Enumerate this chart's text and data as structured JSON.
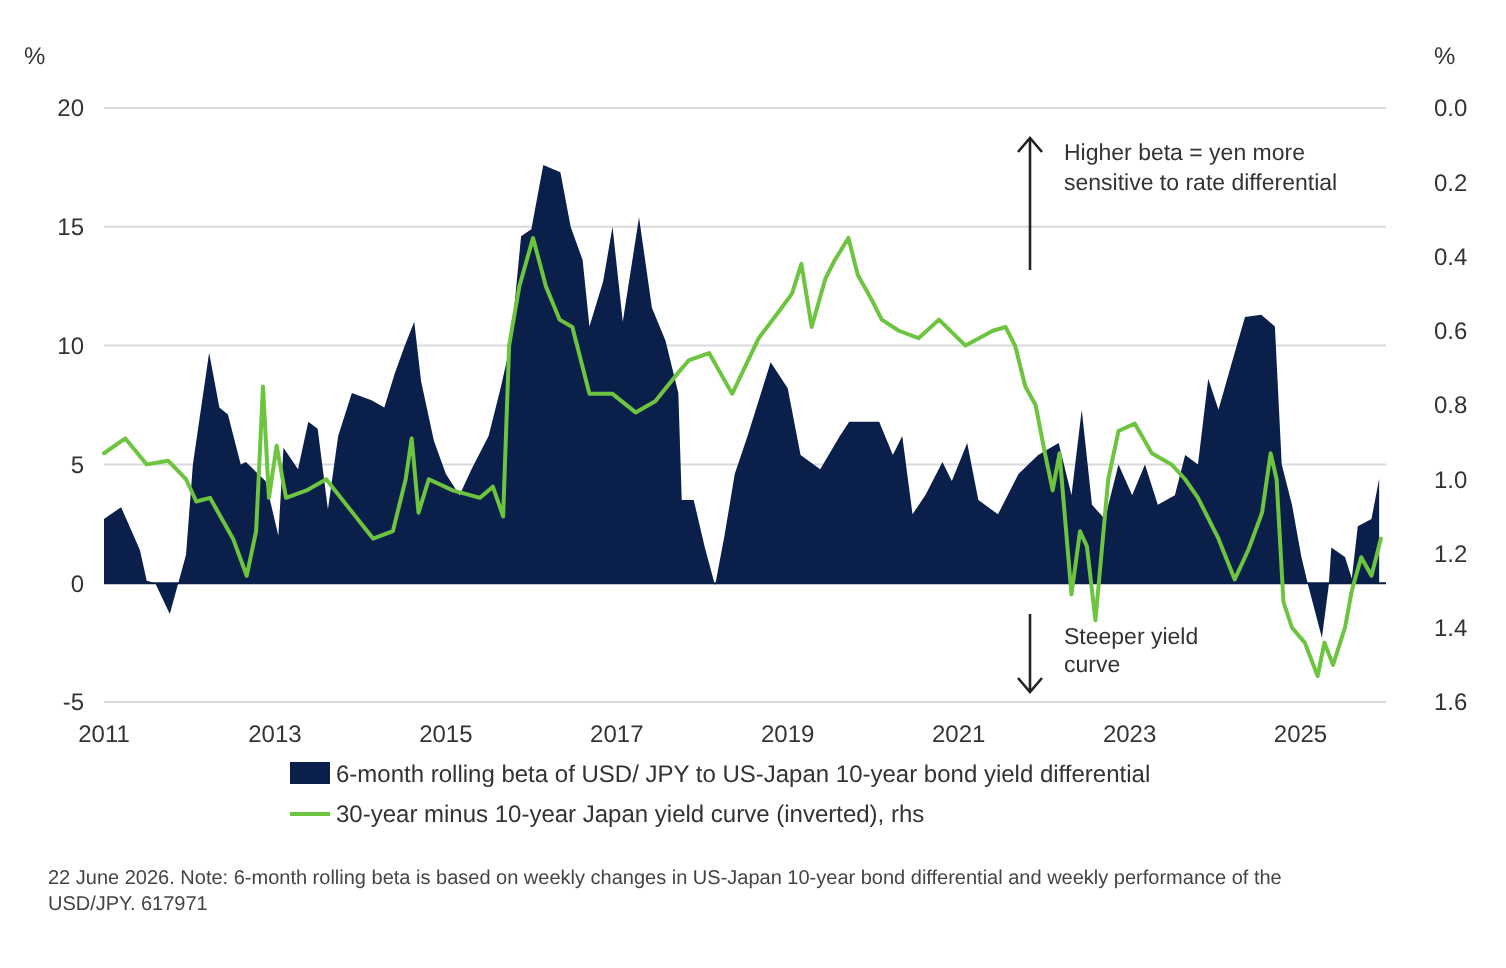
{
  "chart_data": {
    "type": "area",
    "ylabel": "%",
    "y2label": "%",
    "xlim": [
      2011,
      2026
    ],
    "xticks": [
      2011,
      2013,
      2015,
      2017,
      2019,
      2021,
      2023,
      2025
    ],
    "ylim": [
      -5,
      20
    ],
    "yticks": [
      -5,
      0,
      5,
      10,
      15,
      20
    ],
    "y2lim": [
      1.6,
      0
    ],
    "y2ticks": [
      {
        "value": 0,
        "label": "0.0"
      },
      0.2,
      0.4,
      0.6,
      0.8,
      {
        "value": 1,
        "label": "1.0"
      },
      1.2,
      1.4,
      1.6
    ],
    "grid": "y",
    "legend": "bottom",
    "series": [
      {
        "name": "6-month rolling beta of USD/ JPY to US-Japan 10-year bond yield differential",
        "color": "#0b1f4b",
        "x": [
          2011,
          2011.2,
          2011.42,
          2011.5,
          2011.6,
          2011.77,
          2011.96,
          2012.04,
          2012.23,
          2012.35,
          2012.45,
          2012.6,
          2012.66,
          2012.89,
          2013.04,
          2013.1,
          2013.27,
          2013.39,
          2013.5,
          2013.62,
          2013.74,
          2013.9,
          2014.13,
          2014.28,
          2014.4,
          2014.52,
          2014.63,
          2014.71,
          2014.86,
          2015,
          2015.16,
          2015.3,
          2015.5,
          2015.64,
          2015.76,
          2015.88,
          2016,
          2016.14,
          2016.34,
          2016.46,
          2016.6,
          2016.68,
          2016.84,
          2016.95,
          2017.07,
          2017.26,
          2017.41,
          2017.57,
          2017.72,
          2017.76,
          2017.9,
          2018.03,
          2018.15,
          2018.26,
          2018.38,
          2018.53,
          2018.8,
          2019,
          2019.15,
          2019.38,
          2019.61,
          2019.72,
          2020.07,
          2020.23,
          2020.34,
          2020.46,
          2020.61,
          2020.81,
          2020.92,
          2021.1,
          2021.23,
          2021.46,
          2021.7,
          2021.93,
          2022.17,
          2022.32,
          2022.44,
          2022.56,
          2022.71,
          2022.87,
          2023.03,
          2023.18,
          2023.33,
          2023.53,
          2023.65,
          2023.8,
          2023.92,
          2024.04,
          2024.19,
          2024.35,
          2024.54,
          2024.7,
          2024.78,
          2024.9,
          2025.01,
          2025.09,
          2025.25,
          2025.33,
          2025.36,
          2025.52,
          2025.6,
          2025.67,
          2025.83,
          2025.92
        ],
        "values": [
          2.7,
          3.2,
          1.4,
          0.1,
          0,
          -1.3,
          1.2,
          5,
          9.7,
          7.4,
          7.1,
          5,
          5.1,
          4.3,
          2,
          5.7,
          4.8,
          6.8,
          6.5,
          3.1,
          6.2,
          8,
          7.7,
          7.4,
          8.8,
          10,
          11,
          8.5,
          6,
          4.6,
          3.7,
          4.8,
          6.2,
          8.2,
          10.1,
          14.6,
          14.9,
          17.6,
          17.3,
          15,
          13.6,
          10.8,
          12.7,
          15,
          11,
          15.4,
          11.6,
          10.2,
          8,
          3.5,
          3.5,
          1.5,
          -0.1,
          2,
          4.6,
          6.2,
          9.3,
          8.2,
          5.4,
          4.8,
          6.2,
          6.8,
          6.8,
          5.4,
          6.2,
          2.9,
          3.7,
          5.1,
          4.3,
          5.9,
          3.5,
          2.9,
          4.6,
          5.4,
          5.9,
          3.7,
          7.3,
          3.3,
          2.7,
          5,
          3.7,
          5,
          3.3,
          3.7,
          5.4,
          5,
          8.6,
          7.3,
          9.2,
          11.2,
          11.3,
          10.8,
          5,
          3.3,
          1.1,
          -0.1,
          -2.3,
          -0.1,
          1.5,
          1.1,
          0.2,
          2.4,
          2.7,
          4.4
        ]
      },
      {
        "name": "30-year minus 10-year Japan yield curve (inverted), rhs",
        "type": "line",
        "axis": "y2",
        "color": "#6cc43f",
        "x": [
          2011,
          2011.25,
          2011.5,
          2011.75,
          2011.96,
          2012.08,
          2012.24,
          2012.51,
          2012.67,
          2012.78,
          2012.86,
          2012.93,
          2013.02,
          2013.13,
          2013.37,
          2013.6,
          2013.84,
          2014.15,
          2014.38,
          2014.53,
          2014.6,
          2014.68,
          2014.8,
          2015.08,
          2015.4,
          2015.55,
          2015.67,
          2015.74,
          2015.86,
          2016.02,
          2016.17,
          2016.33,
          2016.48,
          2016.68,
          2016.95,
          2017.22,
          2017.45,
          2017.73,
          2017.84,
          2018.08,
          2018.35,
          2018.66,
          2018.89,
          2019.05,
          2019.16,
          2019.28,
          2019.44,
          2019.55,
          2019.71,
          2019.82,
          2019.99,
          2020.1,
          2020.3,
          2020.53,
          2020.77,
          2021.08,
          2021.4,
          2021.55,
          2021.66,
          2021.78,
          2021.9,
          2022.01,
          2022.1,
          2022.18,
          2022.32,
          2022.42,
          2022.5,
          2022.6,
          2022.75,
          2022.87,
          2023.06,
          2023.26,
          2023.49,
          2023.65,
          2023.8,
          2024.04,
          2024.23,
          2024.39,
          2024.55,
          2024.65,
          2024.72,
          2024.8,
          2024.9,
          2025.05,
          2025.2,
          2025.28,
          2025.38,
          2025.52,
          2025.6,
          2025.71,
          2025.83,
          2025.94
        ],
        "values": [
          0.93,
          0.89,
          0.96,
          0.95,
          1.0,
          1.06,
          1.05,
          1.16,
          1.26,
          1.14,
          0.75,
          1.05,
          0.91,
          1.05,
          1.03,
          1.0,
          1.07,
          1.16,
          1.14,
          1.0,
          0.89,
          1.09,
          1.0,
          1.03,
          1.05,
          1.02,
          1.1,
          0.64,
          0.48,
          0.35,
          0.48,
          0.57,
          0.59,
          0.77,
          0.77,
          0.82,
          0.79,
          0.71,
          0.68,
          0.66,
          0.77,
          0.62,
          0.55,
          0.5,
          0.42,
          0.59,
          0.46,
          0.41,
          0.35,
          0.45,
          0.52,
          0.57,
          0.6,
          0.62,
          0.57,
          0.64,
          0.6,
          0.59,
          0.64,
          0.75,
          0.8,
          0.93,
          1.03,
          0.93,
          1.31,
          1.14,
          1.18,
          1.38,
          1.0,
          0.87,
          0.85,
          0.93,
          0.96,
          1.0,
          1.05,
          1.16,
          1.27,
          1.19,
          1.09,
          0.93,
          1.0,
          1.33,
          1.4,
          1.44,
          1.53,
          1.44,
          1.5,
          1.4,
          1.3,
          1.21,
          1.26,
          1.16
        ]
      }
    ],
    "annotations": [
      "Higher beta = yen more sensitive to rate differential",
      "Steeper yield curve",
      "22 June 2026. Note: 6-month rolling beta is based on weekly changes in US-Japan 10-year bond differential and weekly performance of the USD/JPY. 617971"
    ]
  }
}
